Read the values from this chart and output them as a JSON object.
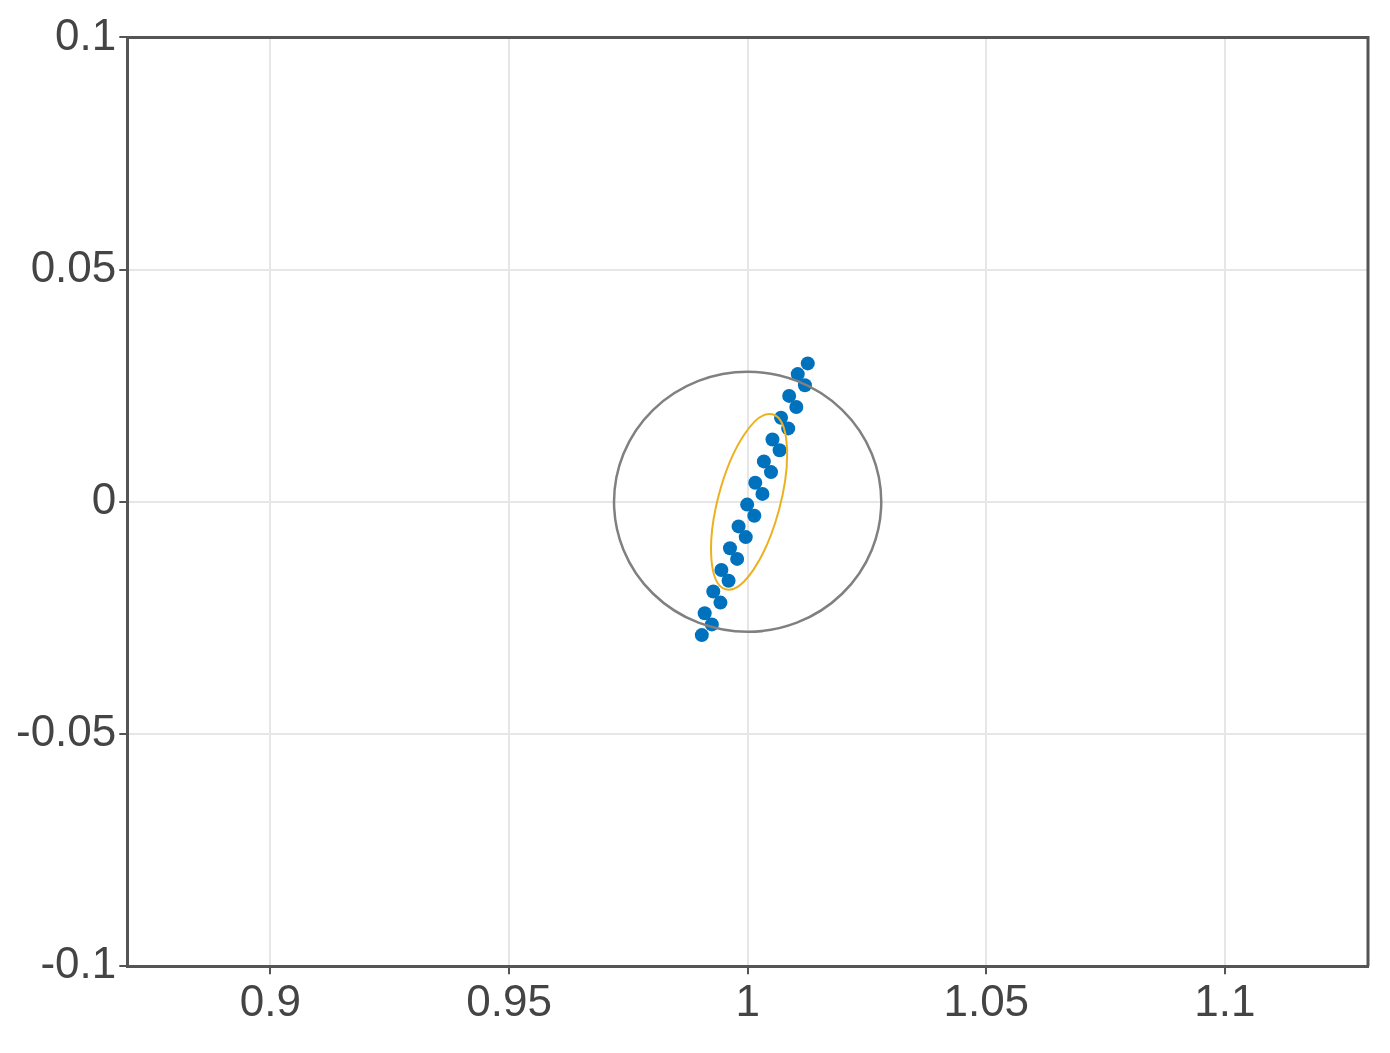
{
  "chart_data": {
    "type": "scatter",
    "xlim": [
      0.87,
      1.13
    ],
    "ylim": [
      -0.1,
      0.1
    ],
    "xticks": [
      0.9,
      0.95,
      1,
      1.05,
      1.1
    ],
    "yticks": [
      -0.1,
      -0.05,
      0,
      0.05,
      0.1
    ],
    "grid": true,
    "legend": false,
    "series": [
      {
        "type": "scatter",
        "marker": "circle",
        "color": "#0072bd",
        "x": [
          0.9904,
          0.9925,
          0.991,
          0.9943,
          0.9928,
          0.996,
          0.9945,
          0.9978,
          0.9963,
          0.9996,
          0.9981,
          1.0014,
          0.9999,
          1.0031,
          1.0016,
          1.0049,
          1.0034,
          1.0067,
          1.0052,
          1.0085,
          1.007,
          1.0102,
          1.0087,
          1.012,
          1.0105,
          1.0126
        ],
        "values": [
          -0.0287,
          -0.0264,
          -0.024,
          -0.0217,
          -0.0193,
          -0.017,
          -0.0147,
          -0.0123,
          -0.01,
          -0.0076,
          -0.0053,
          -0.003,
          -0.0006,
          0.0017,
          0.0041,
          0.0064,
          0.0087,
          0.0111,
          0.0134,
          0.0158,
          0.0181,
          0.0204,
          0.0228,
          0.0251,
          0.0275,
          0.0298
        ]
      }
    ]
  }
}
